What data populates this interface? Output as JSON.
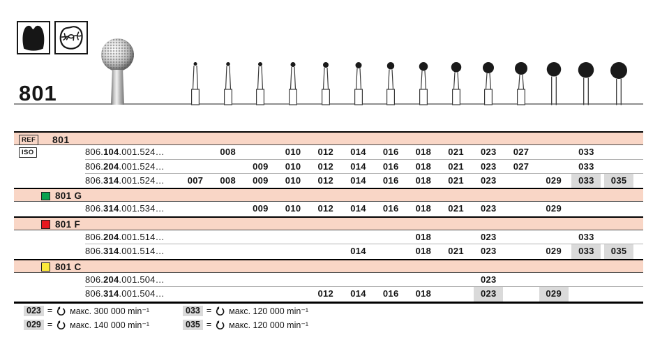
{
  "product": {
    "number": "801",
    "indication_icons": [
      "tooth-crown-icon",
      "occlusal-surface-icon"
    ]
  },
  "size_columns": [
    "007",
    "008",
    "009",
    "010",
    "012",
    "014",
    "016",
    "018",
    "021",
    "023",
    "027",
    "029",
    "033",
    "035"
  ],
  "table": {
    "sections": [
      {
        "header": {
          "kind": "ref",
          "badge": "REF",
          "title": "801"
        },
        "rows": [
          {
            "iso_badge": "ISO",
            "code": [
              "806.",
              "104",
              ".001.524…"
            ],
            "sizes": [
              "008",
              "010",
              "012",
              "014",
              "016",
              "018",
              "021",
              "023",
              "027",
              "033"
            ],
            "highlighted": []
          },
          {
            "code": [
              "806.",
              "204",
              ".001.524…"
            ],
            "sizes": [
              "009",
              "010",
              "012",
              "014",
              "016",
              "018",
              "021",
              "023",
              "027",
              "033"
            ],
            "highlighted": []
          },
          {
            "code": [
              "806.",
              "314",
              ".001.524…"
            ],
            "sizes": [
              "007",
              "008",
              "009",
              "010",
              "012",
              "014",
              "016",
              "018",
              "021",
              "023",
              "029",
              "033",
              "035"
            ],
            "highlighted": [
              "033",
              "035"
            ]
          }
        ]
      },
      {
        "header": {
          "kind": "variant",
          "square_color": "#0ba24f",
          "title": "801 G"
        },
        "rows": [
          {
            "code": [
              "806.",
              "314",
              ".001.534…"
            ],
            "sizes": [
              "009",
              "010",
              "012",
              "014",
              "016",
              "018",
              "021",
              "023",
              "029"
            ],
            "highlighted": []
          }
        ]
      },
      {
        "header": {
          "kind": "variant",
          "square_color": "#e8181e",
          "title": "801 F"
        },
        "rows": [
          {
            "code": [
              "806.",
              "204",
              ".001.514…"
            ],
            "sizes": [
              "018",
              "023",
              "033"
            ],
            "highlighted": []
          },
          {
            "code": [
              "806.",
              "314",
              ".001.514…"
            ],
            "sizes": [
              "014",
              "018",
              "021",
              "023",
              "029",
              "033",
              "035"
            ],
            "highlighted": [
              "033",
              "035"
            ]
          }
        ]
      },
      {
        "header": {
          "kind": "variant",
          "square_color": "#fde93a",
          "title": "801 C"
        },
        "rows": [
          {
            "code": [
              "806.",
              "204",
              ".001.504…"
            ],
            "sizes": [
              "023"
            ],
            "highlighted": []
          },
          {
            "code": [
              "806.",
              "314",
              ".001.504…"
            ],
            "sizes": [
              "012",
              "014",
              "016",
              "018",
              "023",
              "029"
            ],
            "highlighted": [
              "023",
              "029"
            ]
          }
        ]
      }
    ]
  },
  "legend": {
    "equals_sign": "=",
    "rotation_icon": "rotation-speed-icon",
    "items": [
      {
        "chip": "023",
        "text": "макс. 300 000 min⁻¹",
        "column": 0
      },
      {
        "chip": "029",
        "text": "макс. 140 000 min⁻¹",
        "column": 0
      },
      {
        "chip": "033",
        "text": "макс. 120 000 min⁻¹",
        "column": 1
      },
      {
        "chip": "035",
        "text": "макс. 120 000 min⁻¹",
        "column": 1
      }
    ]
  },
  "colors": {
    "row_pink": "#f9d6c6",
    "highlight_gray": "#dadada",
    "variant_green": "#0ba24f",
    "variant_red": "#e8181e",
    "variant_yellow": "#fde93a"
  }
}
